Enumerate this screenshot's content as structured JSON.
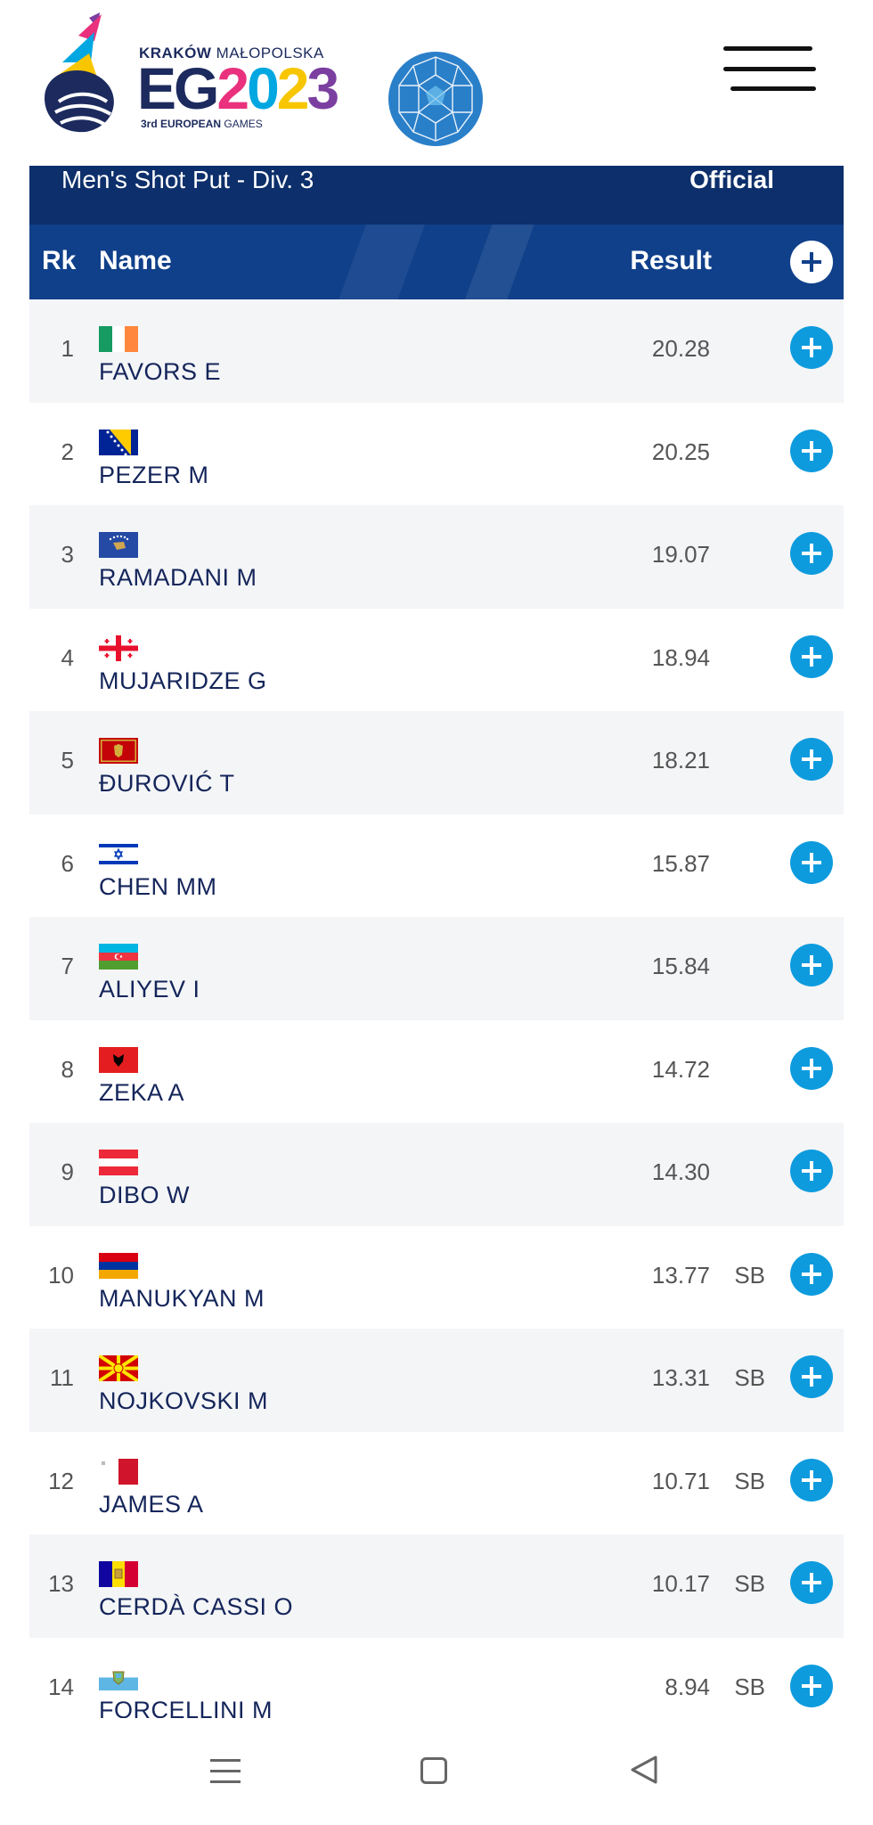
{
  "header": {
    "logo_kr_bold": "KRAKÓW",
    "logo_kr_light": "MAŁOPOLSKA",
    "logo_eg": "EG",
    "logo_year": [
      "2",
      "0",
      "2",
      "3"
    ],
    "logo_sub_bold": "3rd EUROPEAN",
    "logo_sub": "GAMES"
  },
  "event": {
    "title": "Men's Shot Put - Div. 3",
    "status": "Official"
  },
  "columns": {
    "rank": "Rk",
    "name": "Name",
    "result": "Result"
  },
  "rows": [
    {
      "rank": "1",
      "name": "FAVORS E",
      "result": "20.28",
      "note": "",
      "flag": "IRL"
    },
    {
      "rank": "2",
      "name": "PEZER M",
      "result": "20.25",
      "note": "",
      "flag": "BIH"
    },
    {
      "rank": "3",
      "name": "RAMADANI M",
      "result": "19.07",
      "note": "",
      "flag": "KOS"
    },
    {
      "rank": "4",
      "name": "MUJARIDZE G",
      "result": "18.94",
      "note": "",
      "flag": "GEO"
    },
    {
      "rank": "5",
      "name": "ĐUROVIĆ T",
      "result": "18.21",
      "note": "",
      "flag": "MNE"
    },
    {
      "rank": "6",
      "name": "CHEN MM",
      "result": "15.87",
      "note": "",
      "flag": "ISR"
    },
    {
      "rank": "7",
      "name": "ALIYEV I",
      "result": "15.84",
      "note": "",
      "flag": "AZE"
    },
    {
      "rank": "8",
      "name": "ZEKA A",
      "result": "14.72",
      "note": "",
      "flag": "ALB"
    },
    {
      "rank": "9",
      "name": "DIBO W",
      "result": "14.30",
      "note": "",
      "flag": "AUT"
    },
    {
      "rank": "10",
      "name": "MANUKYAN M",
      "result": "13.77",
      "note": "SB",
      "flag": "ARM"
    },
    {
      "rank": "11",
      "name": "NOJKOVSKI M",
      "result": "13.31",
      "note": "SB",
      "flag": "MKD"
    },
    {
      "rank": "12",
      "name": "JAMES A",
      "result": "10.71",
      "note": "SB",
      "flag": "MLT"
    },
    {
      "rank": "13",
      "name": "CERDÀ CASSI O",
      "result": "10.17",
      "note": "SB",
      "flag": "AND"
    },
    {
      "rank": "14",
      "name": "FORCELLINI M",
      "result": "8.94",
      "note": "SB",
      "flag": "SMR"
    }
  ],
  "colors": {
    "title_bar": "#0d2f6b",
    "header_row": "#10408a",
    "plus_button": "#0d9bde",
    "name_text": "#14255a"
  }
}
